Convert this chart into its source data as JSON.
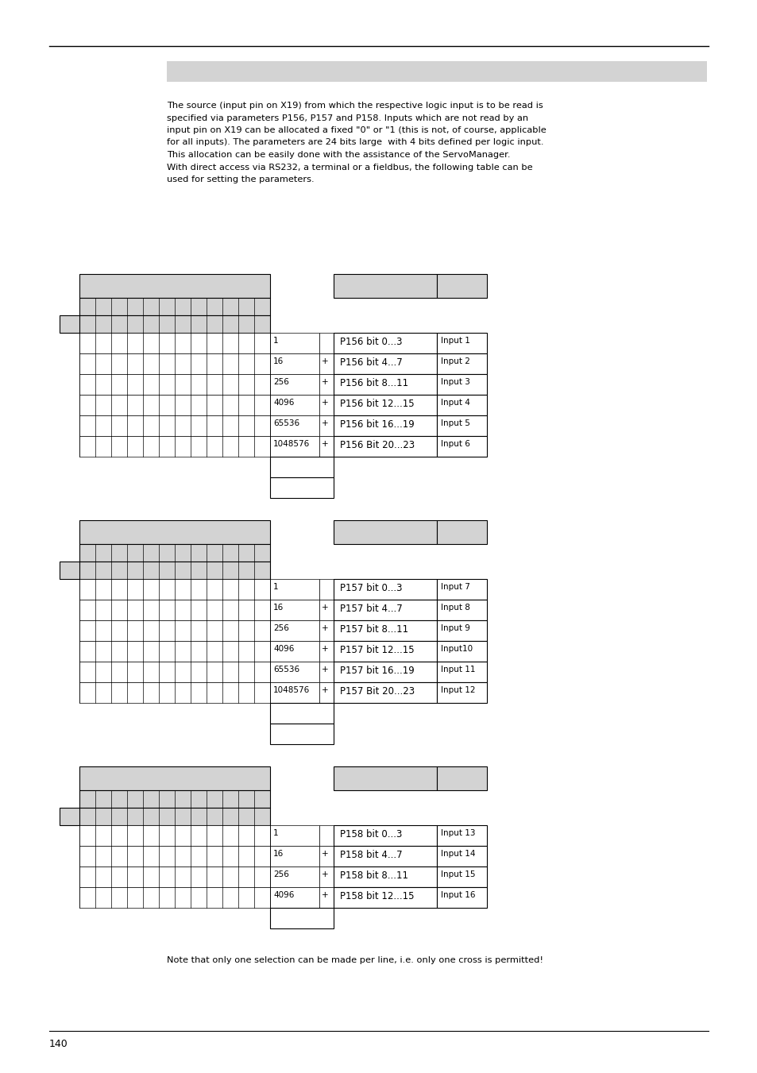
{
  "page_number": "140",
  "paragraph_text": "The source (input pin on X19) from which the respective logic input is to be read is\nspecified via parameters P156, P157 and P158. Inputs which are not read by an\ninput pin on X19 can be allocated a fixed \"0\" or \"1 (this is not, of course, applicable\nfor all inputs). The parameters are 24 bits large  with 4 bits defined per logic input.\nThis allocation can be easily done with the assistance of the ServoManager.\nWith direct access via RS232, a terminal or a fieldbus, the following table can be\nused for setting the parameters.",
  "note_text": "Note that only one selection can be made per line, i.e. only one cross is permitted!",
  "tables": [
    {
      "param": "P156",
      "rows": [
        {
          "value": "1",
          "plus": "",
          "bits": "P156 bit 0...3",
          "input": "Input 1"
        },
        {
          "value": "16",
          "plus": "+",
          "bits": "P156 bit 4...7",
          "input": "Input 2"
        },
        {
          "value": "256",
          "plus": "+",
          "bits": "P156 bit 8...11",
          "input": "Input 3"
        },
        {
          "value": "4096",
          "plus": "+",
          "bits": "P156 bit 12...15",
          "input": "Input 4"
        },
        {
          "value": "65536",
          "plus": "+",
          "bits": "P156 bit 16...19",
          "input": "Input 5"
        },
        {
          "value": "1048576",
          "plus": "+",
          "bits": "P156 Bit 20...23",
          "input": "Input 6"
        }
      ],
      "extra_rows": 2
    },
    {
      "param": "P157",
      "rows": [
        {
          "value": "1",
          "plus": "",
          "bits": "P157 bit 0...3",
          "input": "Input 7"
        },
        {
          "value": "16",
          "plus": "+",
          "bits": "P157 bit 4...7",
          "input": "Input 8"
        },
        {
          "value": "256",
          "plus": "+",
          "bits": "P157 bit 8...11",
          "input": "Input 9"
        },
        {
          "value": "4096",
          "plus": "+",
          "bits": "P157 bit 12...15",
          "input": "Input10"
        },
        {
          "value": "65536",
          "plus": "+",
          "bits": "P157 bit 16...19",
          "input": "Input 11"
        },
        {
          "value": "1048576",
          "plus": "+",
          "bits": "P157 Bit 20...23",
          "input": "Input 12"
        }
      ],
      "extra_rows": 2
    },
    {
      "param": "P158",
      "rows": [
        {
          "value": "1",
          "plus": "",
          "bits": "P158 bit 0...3",
          "input": "Input 13"
        },
        {
          "value": "16",
          "plus": "+",
          "bits": "P158 bit 4...7",
          "input": "Input 14"
        },
        {
          "value": "256",
          "plus": "+",
          "bits": "P158 bit 8...11",
          "input": "Input 15"
        },
        {
          "value": "4096",
          "plus": "+",
          "bits": "P158 bit 12...15",
          "input": "Input 16"
        }
      ],
      "extra_rows": 1
    }
  ]
}
